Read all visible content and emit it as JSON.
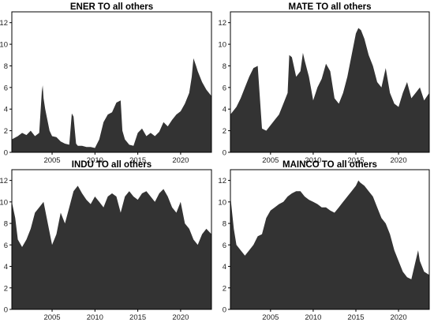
{
  "colors": {
    "fill": "#333333",
    "frame": "#000000",
    "background": "#ffffff"
  },
  "chart_data": [
    {
      "type": "area",
      "title": "ENER TO all others",
      "xlabel": "",
      "ylabel": "",
      "xlim": [
        2000.3,
        2023.6
      ],
      "ylim": [
        0,
        13
      ],
      "x_ticks": [
        2005,
        2010,
        2015,
        2020
      ],
      "y_ticks": [
        0,
        2,
        4,
        6,
        8,
        10,
        12
      ],
      "grid": false,
      "x": [
        2000.3,
        2001.0,
        2001.5,
        2002.0,
        2002.5,
        2003.0,
        2003.5,
        2003.8,
        2003.9,
        2004.0,
        2004.2,
        2004.4,
        2004.7,
        2005.0,
        2005.5,
        2006.0,
        2006.5,
        2007.0,
        2007.3,
        2007.5,
        2007.8,
        2008.0,
        2008.5,
        2009.0,
        2009.5,
        2010.0,
        2010.5,
        2011.0,
        2011.5,
        2012.0,
        2012.5,
        2013.0,
        2013.2,
        2013.5,
        2014.0,
        2014.5,
        2015.0,
        2015.5,
        2016.0,
        2016.5,
        2017.0,
        2017.5,
        2018.0,
        2018.5,
        2019.0,
        2019.5,
        2020.0,
        2020.5,
        2021.0,
        2021.3,
        2021.5,
        2021.8,
        2022.0,
        2022.5,
        2023.0,
        2023.6
      ],
      "values": [
        1.2,
        1.5,
        1.8,
        1.6,
        2.0,
        1.5,
        1.8,
        5.6,
        6.2,
        5.0,
        4.0,
        3.2,
        2.0,
        1.5,
        1.4,
        1.0,
        0.8,
        0.7,
        3.6,
        3.3,
        0.8,
        0.6,
        0.6,
        0.5,
        0.5,
        0.4,
        1.2,
        2.8,
        3.5,
        3.7,
        4.6,
        4.8,
        2.0,
        1.2,
        0.7,
        0.6,
        1.8,
        2.2,
        1.5,
        1.8,
        1.5,
        1.9,
        2.8,
        2.4,
        3.0,
        3.5,
        3.8,
        4.5,
        5.5,
        7.0,
        8.7,
        8.0,
        7.5,
        6.5,
        5.8,
        5.2
      ]
    },
    {
      "type": "area",
      "title": "MATE TO all others",
      "xlabel": "",
      "ylabel": "",
      "xlim": [
        2000.3,
        2023.6
      ],
      "ylim": [
        0,
        13
      ],
      "x_ticks": [
        2005,
        2010,
        2015,
        2020
      ],
      "y_ticks": [
        0,
        2,
        4,
        6,
        8,
        10,
        12
      ],
      "grid": false,
      "x": [
        2000.3,
        2001.0,
        2001.5,
        2002.0,
        2002.5,
        2003.0,
        2003.5,
        2004.0,
        2004.5,
        2005.0,
        2005.5,
        2006.0,
        2006.5,
        2007.0,
        2007.2,
        2007.5,
        2008.0,
        2008.5,
        2008.8,
        2009.0,
        2009.5,
        2010.0,
        2010.5,
        2011.0,
        2011.5,
        2012.0,
        2012.5,
        2013.0,
        2013.5,
        2014.0,
        2014.5,
        2015.0,
        2015.3,
        2015.6,
        2016.0,
        2016.5,
        2017.0,
        2017.5,
        2018.0,
        2018.5,
        2019.0,
        2019.5,
        2020.0,
        2020.5,
        2021.0,
        2021.5,
        2022.0,
        2022.5,
        2023.0,
        2023.6
      ],
      "values": [
        3.5,
        4.2,
        5.0,
        6.0,
        7.0,
        7.8,
        8.0,
        2.2,
        2.0,
        2.5,
        3.0,
        3.5,
        4.5,
        5.5,
        9.0,
        8.8,
        7.0,
        7.5,
        9.2,
        8.5,
        7.0,
        4.8,
        6.0,
        6.8,
        8.2,
        7.5,
        5.0,
        4.5,
        5.5,
        7.0,
        9.0,
        11.0,
        11.5,
        11.3,
        10.5,
        9.0,
        8.0,
        6.5,
        6.0,
        7.8,
        5.5,
        4.5,
        4.2,
        5.5,
        6.5,
        5.0,
        5.5,
        6.0,
        4.8,
        5.5
      ]
    },
    {
      "type": "area",
      "title": "INDU TO all others",
      "xlabel": "",
      "ylabel": "",
      "xlim": [
        2000.3,
        2023.6
      ],
      "ylim": [
        0,
        13
      ],
      "x_ticks": [
        2005,
        2010,
        2015,
        2020
      ],
      "y_ticks": [
        0,
        2,
        4,
        6,
        8,
        10,
        12
      ],
      "grid": false,
      "x": [
        2000.3,
        2000.7,
        2001.0,
        2001.5,
        2002.0,
        2002.5,
        2003.0,
        2003.5,
        2004.0,
        2004.5,
        2005.0,
        2005.5,
        2006.0,
        2006.5,
        2007.0,
        2007.5,
        2008.0,
        2008.5,
        2009.0,
        2009.5,
        2010.0,
        2010.5,
        2011.0,
        2011.5,
        2012.0,
        2012.5,
        2013.0,
        2013.5,
        2014.0,
        2014.5,
        2015.0,
        2015.5,
        2016.0,
        2016.5,
        2017.0,
        2017.5,
        2018.0,
        2018.5,
        2019.0,
        2019.5,
        2020.0,
        2020.5,
        2021.0,
        2021.5,
        2022.0,
        2022.5,
        2023.0,
        2023.6
      ],
      "values": [
        10.0,
        8.5,
        6.5,
        5.8,
        6.5,
        7.5,
        9.0,
        9.5,
        10.0,
        8.0,
        6.0,
        7.0,
        9.0,
        8.0,
        9.5,
        11.0,
        11.5,
        10.8,
        10.2,
        9.8,
        10.5,
        10.0,
        9.5,
        10.5,
        10.8,
        10.5,
        9.0,
        10.5,
        11.0,
        10.5,
        10.2,
        10.8,
        11.0,
        10.5,
        10.0,
        10.8,
        11.2,
        10.5,
        9.5,
        9.0,
        10.0,
        8.0,
        7.5,
        6.5,
        6.0,
        7.0,
        7.5,
        7.0
      ]
    },
    {
      "type": "area",
      "title": "MAINCO TO all others",
      "xlabel": "",
      "ylabel": "",
      "xlim": [
        2000.3,
        2023.6
      ],
      "ylim": [
        0,
        13
      ],
      "x_ticks": [
        2005,
        2010,
        2015,
        2020
      ],
      "y_ticks": [
        0,
        2,
        4,
        6,
        8,
        10,
        12
      ],
      "grid": false,
      "x": [
        2000.3,
        2000.7,
        2001.0,
        2001.5,
        2002.0,
        2002.5,
        2003.0,
        2003.5,
        2004.0,
        2004.5,
        2005.0,
        2005.5,
        2006.0,
        2006.5,
        2007.0,
        2007.5,
        2008.0,
        2008.5,
        2009.0,
        2009.5,
        2010.0,
        2010.5,
        2011.0,
        2011.5,
        2012.0,
        2012.5,
        2013.0,
        2013.5,
        2014.0,
        2014.5,
        2015.0,
        2015.3,
        2015.5,
        2016.0,
        2016.5,
        2017.0,
        2017.5,
        2018.0,
        2018.5,
        2019.0,
        2019.5,
        2020.0,
        2020.5,
        2021.0,
        2021.5,
        2022.0,
        2022.3,
        2022.5,
        2023.0,
        2023.6
      ],
      "values": [
        10.5,
        7.5,
        6.0,
        5.5,
        5.0,
        5.5,
        6.0,
        6.8,
        7.0,
        8.5,
        9.2,
        9.5,
        9.8,
        10.0,
        10.5,
        10.8,
        11.0,
        11.0,
        10.5,
        10.2,
        10.0,
        9.8,
        9.5,
        9.5,
        9.2,
        9.0,
        9.5,
        10.0,
        10.5,
        11.0,
        11.5,
        12.0,
        11.8,
        11.5,
        11.0,
        10.5,
        9.5,
        8.5,
        8.0,
        7.0,
        5.5,
        4.5,
        3.5,
        3.0,
        2.8,
        4.5,
        5.5,
        4.5,
        3.5,
        3.2
      ]
    }
  ]
}
